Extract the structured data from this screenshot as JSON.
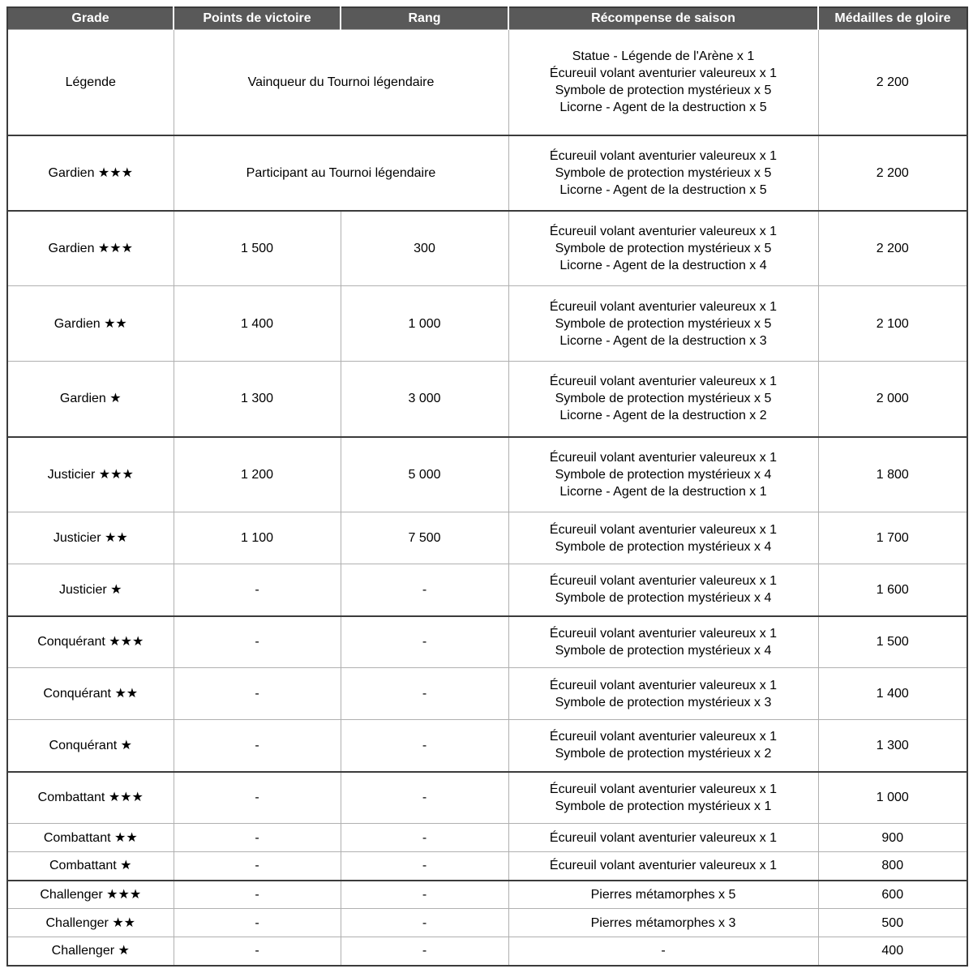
{
  "table": {
    "columns": [
      "Grade",
      "Points de victoire",
      "Rang",
      "Récompense de saison",
      "Médailles de gloire"
    ],
    "rows": [
      {
        "grade": "Légende",
        "points": "Vainqueur du Tournoi légendaire",
        "points_span": true,
        "rang": null,
        "rewards": [
          "Statue - Légende de l'Arène x 1",
          "Écureuil volant aventurier valeureux x 1",
          "Symbole de protection mystérieux x 5",
          "Licorne - Agent de la destruction x 5"
        ],
        "medals": "2 200",
        "group_end": true
      },
      {
        "grade": "Gardien ★★★",
        "points": "Participant au Tournoi légendaire",
        "points_span": true,
        "rang": null,
        "rewards": [
          "Écureuil volant aventurier valeureux x 1",
          "Symbole de protection mystérieux x 5",
          "Licorne - Agent de la destruction x 5"
        ],
        "medals": "2 200",
        "group_end": true
      },
      {
        "grade": "Gardien ★★★",
        "points": "1 500",
        "points_span": false,
        "rang": "300",
        "rewards": [
          "Écureuil volant aventurier valeureux x 1",
          "Symbole de protection mystérieux x 5",
          "Licorne - Agent de la destruction x 4"
        ],
        "medals": "2 200",
        "group_end": false
      },
      {
        "grade": "Gardien ★★",
        "points": "1 400",
        "points_span": false,
        "rang": "1 000",
        "rewards": [
          "Écureuil volant aventurier valeureux x 1",
          "Symbole de protection mystérieux x 5",
          "Licorne - Agent de la destruction x 3"
        ],
        "medals": "2 100",
        "group_end": false
      },
      {
        "grade": "Gardien ★",
        "points": "1 300",
        "points_span": false,
        "rang": "3 000",
        "rewards": [
          "Écureuil volant aventurier valeureux x 1",
          "Symbole de protection mystérieux x 5",
          "Licorne - Agent de la destruction x 2"
        ],
        "medals": "2 000",
        "group_end": true
      },
      {
        "grade": "Justicier ★★★",
        "points": "1 200",
        "points_span": false,
        "rang": "5 000",
        "rewards": [
          "Écureuil volant aventurier valeureux x 1",
          "Symbole de protection mystérieux x 4",
          "Licorne - Agent de la destruction x 1"
        ],
        "medals": "1 800",
        "group_end": false
      },
      {
        "grade": "Justicier ★★",
        "points": "1 100",
        "points_span": false,
        "rang": "7 500",
        "rewards": [
          "Écureuil volant aventurier valeureux x 1",
          "Symbole de protection mystérieux x 4"
        ],
        "medals": "1 700",
        "group_end": false
      },
      {
        "grade": "Justicier ★",
        "points": "-",
        "points_span": false,
        "rang": "-",
        "rewards": [
          "Écureuil volant aventurier valeureux x 1",
          "Symbole de protection mystérieux x 4"
        ],
        "medals": "1 600",
        "group_end": true
      },
      {
        "grade": "Conquérant ★★★",
        "points": "-",
        "points_span": false,
        "rang": "-",
        "rewards": [
          "Écureuil volant aventurier valeureux x 1",
          "Symbole de protection mystérieux x 4"
        ],
        "medals": "1 500",
        "group_end": false
      },
      {
        "grade": "Conquérant ★★",
        "points": "-",
        "points_span": false,
        "rang": "-",
        "rewards": [
          "Écureuil volant aventurier valeureux x 1",
          "Symbole de protection mystérieux x 3"
        ],
        "medals": "1 400",
        "group_end": false
      },
      {
        "grade": "Conquérant ★",
        "points": "-",
        "points_span": false,
        "rang": "-",
        "rewards": [
          "Écureuil volant aventurier valeureux x 1",
          "Symbole de protection mystérieux x 2"
        ],
        "medals": "1 300",
        "group_end": true
      },
      {
        "grade": "Combattant ★★★",
        "points": "-",
        "points_span": false,
        "rang": "-",
        "rewards": [
          "Écureuil volant aventurier valeureux x 1",
          "Symbole de protection mystérieux x 1"
        ],
        "medals": "1 000",
        "group_end": false
      },
      {
        "grade": "Combattant ★★",
        "points": "-",
        "points_span": false,
        "rang": "-",
        "rewards": [
          "Écureuil volant aventurier valeureux x 1"
        ],
        "medals": "900",
        "group_end": false
      },
      {
        "grade": "Combattant ★",
        "points": "-",
        "points_span": false,
        "rang": "-",
        "rewards": [
          "Écureuil volant aventurier valeureux x 1"
        ],
        "medals": "800",
        "group_end": true
      },
      {
        "grade": "Challenger ★★★",
        "points": "-",
        "points_span": false,
        "rang": "-",
        "rewards": [
          "Pierres métamorphes x 5"
        ],
        "medals": "600",
        "group_end": false
      },
      {
        "grade": "Challenger ★★",
        "points": "-",
        "points_span": false,
        "rang": "-",
        "rewards": [
          "Pierres métamorphes x 3"
        ],
        "medals": "500",
        "group_end": false
      },
      {
        "grade": "Challenger ★",
        "points": "-",
        "points_span": false,
        "rang": "-",
        "rewards": [
          "-"
        ],
        "medals": "400",
        "group_end": true
      }
    ]
  },
  "colors": {
    "header_bg": "#595959",
    "header_text": "#ffffff",
    "border_light": "#b0b0b0",
    "border_dark": "#3b3b3b",
    "text": "#000000"
  }
}
